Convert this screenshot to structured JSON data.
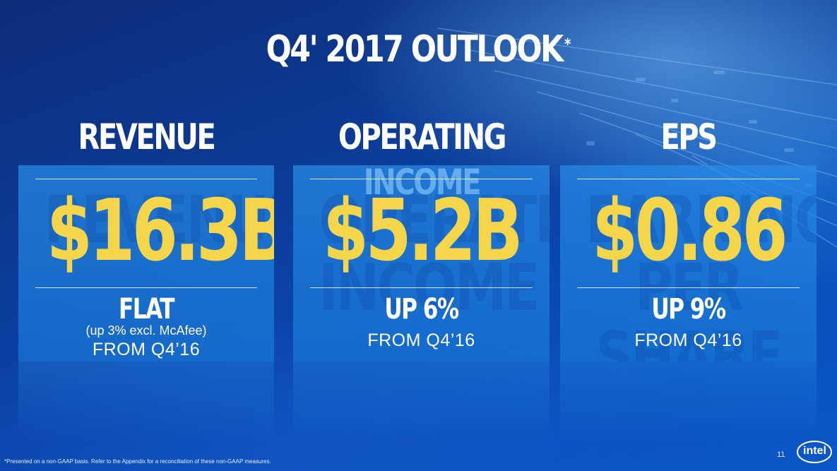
{
  "slide": {
    "title": "Q4' 2017 OUTLOOK",
    "title_asterisk": "*",
    "footnote": "*Presented on a non-GAAP basis.  Refer to the Appendix for a reconciliation of these non-GAAP measures.",
    "page_number": "11",
    "logo_text": "intel"
  },
  "colors": {
    "value_yellow": "#f5d64a",
    "card_blue": "#238ce6"
  },
  "metrics": [
    {
      "heading": "REVENUE",
      "watermark": "REVENUE",
      "value": "$16.3B",
      "change": "FLAT",
      "note": "(up 3% excl. McAfee)",
      "from": "FROM Q4’16"
    },
    {
      "heading": "OPERATING INCOME",
      "watermark": "OPERATING\nINCOME",
      "value": "$5.2B",
      "change": "UP 6%",
      "note": "",
      "from": "FROM Q4’16"
    },
    {
      "heading": "EPS",
      "watermark": "EARNINGS\nPER SHARE",
      "value": "$0.86",
      "change": "UP 9%",
      "note": "",
      "from": "FROM Q4’16"
    }
  ]
}
